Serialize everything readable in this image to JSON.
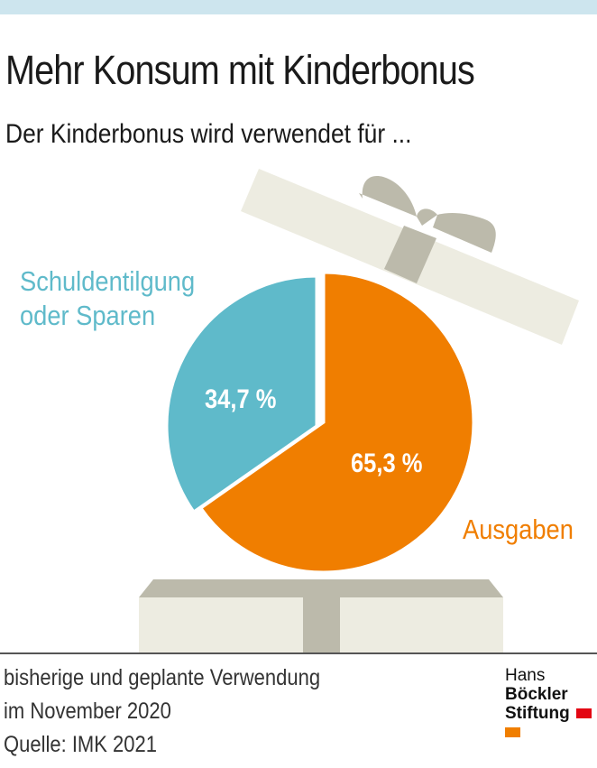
{
  "title": "Mehr Konsum mit Kinderbonus",
  "subtitle": "Der Kinderbonus wird verwendet für ...",
  "chart_data": {
    "type": "pie",
    "title": "Mehr Konsum mit Kinderbonus",
    "subtitle": "Der Kinderbonus wird verwendet für ...",
    "slices": [
      {
        "label_line1": "Schuldentilgung",
        "label_line2": "oder Sparen",
        "value": 34.7,
        "value_label": "34,7 %",
        "color": "#5fbaca"
      },
      {
        "label_line1": "Ausgaben",
        "value": 65.3,
        "value_label": "65,3 %",
        "color": "#f07e00"
      }
    ]
  },
  "footer": {
    "line1": "bisherige und geplante Verwendung",
    "line2": "im November 2020",
    "source": "Quelle: IMK 2021"
  },
  "logo": {
    "word1": "Hans",
    "word2": "Böckler",
    "word3": "Stiftung",
    "colors": [
      "#e30613",
      "#f07e00"
    ]
  },
  "decor": {
    "gift_light": "#edece1",
    "gift_dark": "#bcbaab",
    "topbar": "#cde5ee"
  }
}
